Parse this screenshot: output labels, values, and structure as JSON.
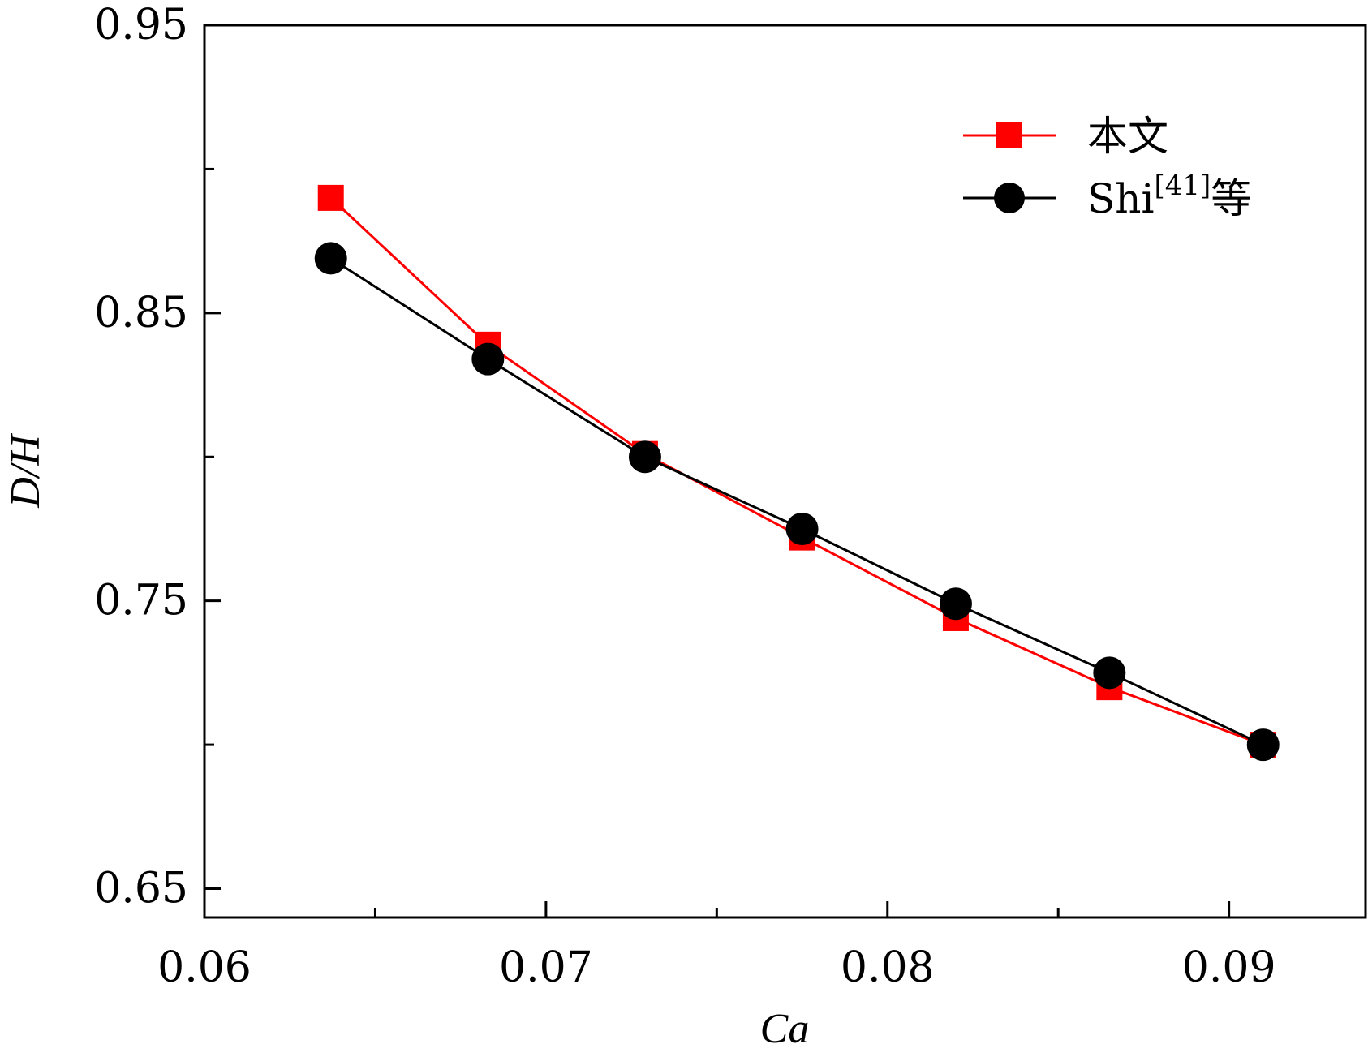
{
  "chart_data": {
    "type": "line",
    "title": "",
    "xlabel": "Ca",
    "ylabel": "D/H",
    "xlim": [
      0.06,
      0.094
    ],
    "ylim": [
      0.64,
      0.95
    ],
    "x_ticks": [
      "0.06",
      "0.07",
      "0.08",
      "0.09"
    ],
    "x_tick_values": [
      0.06,
      0.07,
      0.08,
      0.09
    ],
    "x_minor_ticks": [
      0.065,
      0.075,
      0.085
    ],
    "y_ticks": [
      "0.65",
      "0.75",
      "0.85",
      "0.95"
    ],
    "y_tick_values": [
      0.65,
      0.75,
      0.85,
      0.95
    ],
    "y_minor_ticks": [
      0.7,
      0.8,
      0.9
    ],
    "grid": false,
    "legend_position": "top-right",
    "series": [
      {
        "name": "本文",
        "color": "#ff0000",
        "marker": "square",
        "x": [
          0.0637,
          0.0683,
          0.0729,
          0.0775,
          0.082,
          0.0865,
          0.091
        ],
        "y": [
          0.89,
          0.839,
          0.801,
          0.772,
          0.744,
          0.72,
          0.7
        ]
      },
      {
        "name": "Shi[41]等",
        "name_parts": {
          "base": "Shi",
          "sup": "[41]",
          "suffix": "等"
        },
        "color": "#000000",
        "marker": "circle",
        "x": [
          0.0637,
          0.0683,
          0.0729,
          0.0775,
          0.082,
          0.0865,
          0.091
        ],
        "y": [
          0.869,
          0.834,
          0.8,
          0.775,
          0.749,
          0.725,
          0.7
        ]
      }
    ]
  }
}
